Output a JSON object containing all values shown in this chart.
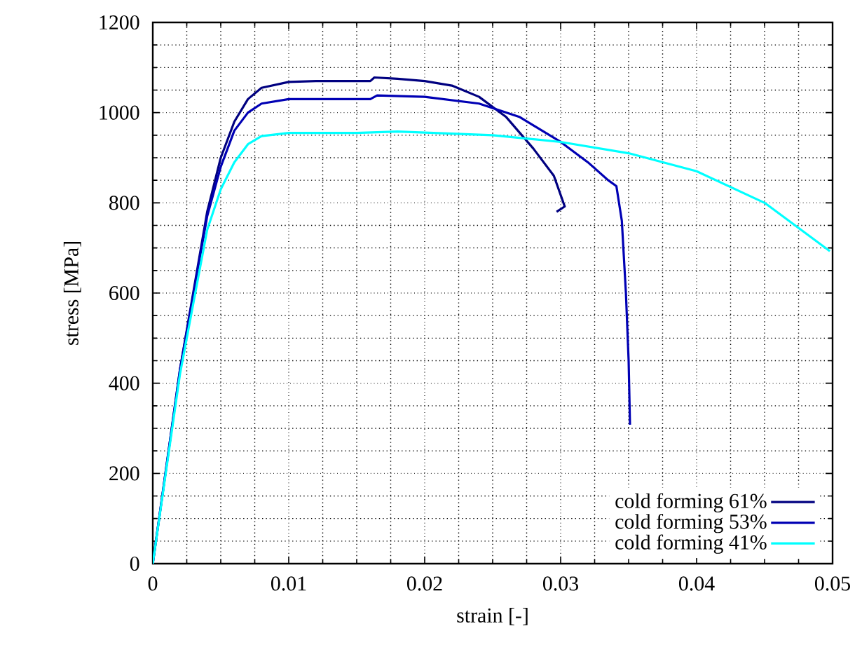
{
  "chart_data": {
    "type": "line",
    "xlabel": "strain [-]",
    "ylabel": "stress [MPa]",
    "xlim": [
      0,
      0.05
    ],
    "xticks": [
      0,
      0.01,
      0.02,
      0.03,
      0.04,
      0.05
    ],
    "ylim": [
      0,
      1200
    ],
    "yticks": [
      0,
      200,
      400,
      600,
      800,
      1000,
      1200
    ],
    "grid": true,
    "legend": "bottom right",
    "line_style": "solid",
    "marker": "none",
    "series": [
      {
        "name": "cold forming 61%",
        "color": "#000080",
        "x": [
          0,
          0.002,
          0.004,
          0.005,
          0.006,
          0.007,
          0.008,
          0.01,
          0.012,
          0.016,
          0.0163,
          0.018,
          0.02,
          0.022,
          0.024,
          0.026,
          0.028,
          0.0295,
          0.0303,
          0.0297
        ],
        "values": [
          0,
          430,
          780,
          900,
          980,
          1030,
          1055,
          1068,
          1070,
          1070,
          1078,
          1075,
          1070,
          1060,
          1035,
          990,
          920,
          860,
          792,
          780
        ]
      },
      {
        "name": "cold forming 53%",
        "color": "#0000b4",
        "x": [
          0,
          0.002,
          0.004,
          0.005,
          0.006,
          0.007,
          0.008,
          0.01,
          0.016,
          0.0165,
          0.02,
          0.024,
          0.027,
          0.03,
          0.032,
          0.0335,
          0.0341,
          0.0345,
          0.0348,
          0.035,
          0.0351
        ],
        "values": [
          0,
          430,
          770,
          880,
          960,
          1000,
          1020,
          1030,
          1030,
          1038,
          1035,
          1020,
          990,
          935,
          890,
          850,
          837,
          760,
          600,
          450,
          308
        ]
      },
      {
        "name": "cold forming 41%",
        "color": "#00ffff",
        "x": [
          0,
          0.002,
          0.004,
          0.005,
          0.006,
          0.007,
          0.008,
          0.01,
          0.015,
          0.018,
          0.025,
          0.03,
          0.035,
          0.04,
          0.045,
          0.0498
        ],
        "values": [
          0,
          420,
          740,
          830,
          890,
          930,
          948,
          955,
          955,
          958,
          950,
          935,
          910,
          870,
          800,
          693
        ]
      }
    ]
  }
}
